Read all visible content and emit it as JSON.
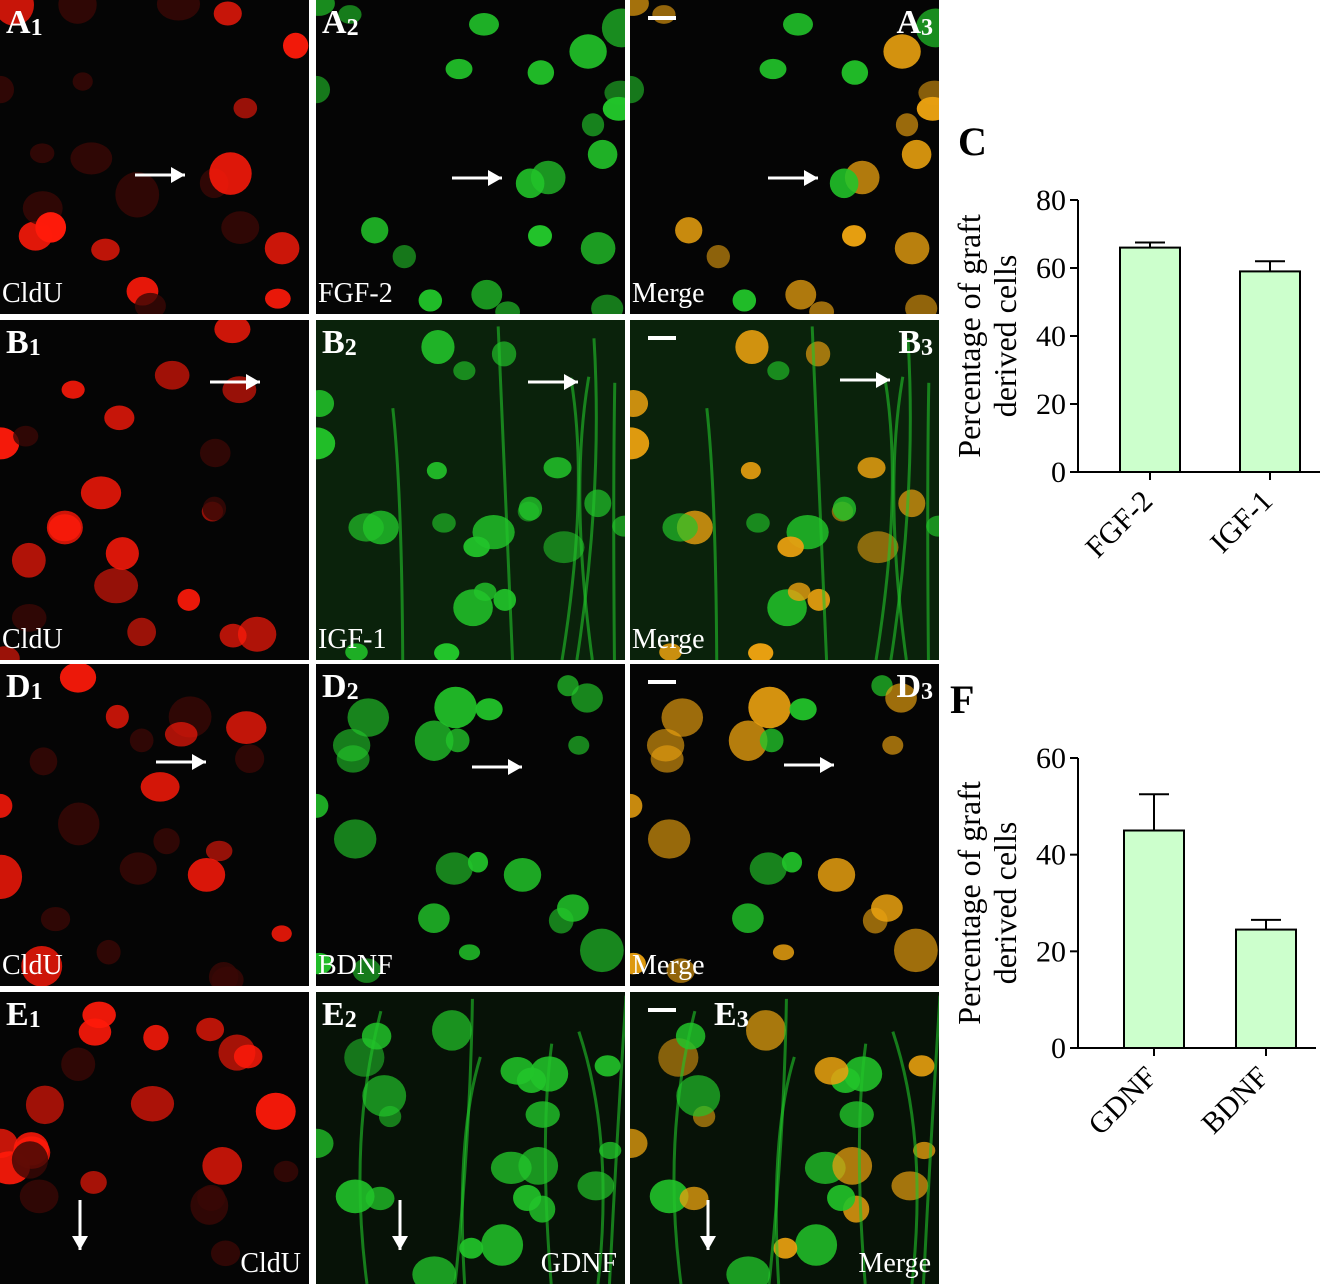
{
  "panels": [
    {
      "id": "A1",
      "letter": "A",
      "num": "1",
      "stain": "CldU",
      "color": "red"
    },
    {
      "id": "A2",
      "letter": "A",
      "num": "2",
      "stain": "FGF-2",
      "color": "green"
    },
    {
      "id": "A3",
      "letter": "A",
      "num": "3",
      "stain": "Merge",
      "color": "merge"
    },
    {
      "id": "B1",
      "letter": "B",
      "num": "1",
      "stain": "CldU",
      "color": "red"
    },
    {
      "id": "B2",
      "letter": "B",
      "num": "2",
      "stain": "IGF-1",
      "color": "green"
    },
    {
      "id": "B3",
      "letter": "B",
      "num": "3",
      "stain": "Merge",
      "color": "merge"
    },
    {
      "id": "D1",
      "letter": "D",
      "num": "1",
      "stain": "CldU",
      "color": "red"
    },
    {
      "id": "D2",
      "letter": "D",
      "num": "2",
      "stain": "BDNF",
      "color": "green"
    },
    {
      "id": "D3",
      "letter": "D",
      "num": "3",
      "stain": "Merge",
      "color": "merge"
    },
    {
      "id": "E1",
      "letter": "E",
      "num": "1",
      "stain": "CldU",
      "color": "red"
    },
    {
      "id": "E2",
      "letter": "E",
      "num": "2",
      "stain": "GDNF",
      "color": "green"
    },
    {
      "id": "E3",
      "letter": "E",
      "num": "3",
      "stain": "Merge",
      "color": "merge"
    }
  ],
  "colors": {
    "red": "#ff1a0a",
    "green": "#22c42a",
    "merge": "#e8a010",
    "bar_fill": "#ccffcc",
    "bar_stroke": "#000000"
  },
  "chart_data": [
    {
      "panel_letter": "C",
      "type": "bar",
      "categories": [
        "FGF-2",
        "IGF-1"
      ],
      "values": [
        66,
        59
      ],
      "errors": [
        1.5,
        3
      ],
      "ylabel": "Percentage of graft\nderived cells",
      "ylim": [
        0,
        80
      ],
      "yticks": [
        0,
        20,
        40,
        60,
        80
      ]
    },
    {
      "panel_letter": "F",
      "type": "bar",
      "categories": [
        "GDNF",
        "BDNF"
      ],
      "values": [
        45,
        24.5
      ],
      "errors": [
        7.5,
        2
      ],
      "ylabel": "Percentage of graft\nderived cells",
      "ylim": [
        0,
        60
      ],
      "yticks": [
        0,
        20,
        40,
        60
      ]
    }
  ]
}
